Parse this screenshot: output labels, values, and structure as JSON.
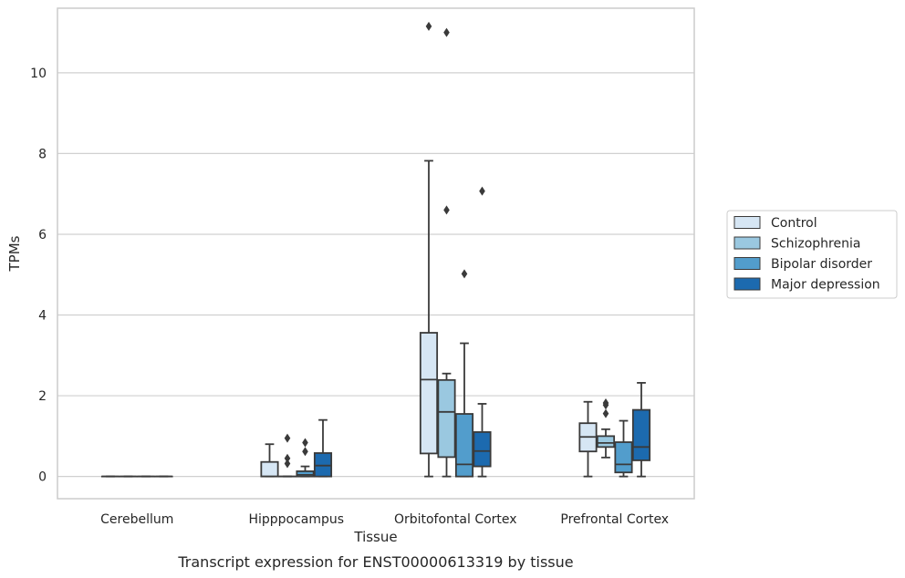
{
  "chart_data": {
    "type": "box",
    "caption": "Transcript expression for ENST00000613319 by tissue",
    "xlabel": "Tissue",
    "ylabel": "TPMs",
    "ylim": [
      -0.55,
      11.6
    ],
    "yticks": [
      0,
      2,
      4,
      6,
      8,
      10
    ],
    "grid": true,
    "legend_position": "right",
    "categories": [
      "Cerebellum",
      "Hipppocampus",
      "Orbitofontal Cortex",
      "Prefrontal Cortex"
    ],
    "series": [
      {
        "name": "Control",
        "color": "#d6e6f4",
        "boxes": [
          {
            "whisker_low": 0,
            "q1": 0,
            "median": 0,
            "q3": 0,
            "whisker_high": 0,
            "outliers": []
          },
          {
            "whisker_low": 0,
            "q1": 0,
            "median": 0,
            "q3": 0.36,
            "whisker_high": 0.8,
            "outliers": []
          },
          {
            "whisker_low": 0,
            "q1": 0.57,
            "median": 2.4,
            "q3": 3.56,
            "whisker_high": 7.82,
            "outliers": [
              11.15
            ]
          },
          {
            "whisker_low": 0,
            "q1": 0.62,
            "median": 0.98,
            "q3": 1.32,
            "whisker_high": 1.85,
            "outliers": []
          }
        ]
      },
      {
        "name": "Schizophrenia",
        "color": "#9ac8e0",
        "boxes": [
          {
            "whisker_low": 0,
            "q1": 0,
            "median": 0,
            "q3": 0,
            "whisker_high": 0,
            "outliers": []
          },
          {
            "whisker_low": 0,
            "q1": 0,
            "median": 0,
            "q3": 0,
            "whisker_high": 0,
            "outliers": [
              0.95,
              0.45,
              0.32
            ]
          },
          {
            "whisker_low": 0,
            "q1": 0.48,
            "median": 1.6,
            "q3": 2.39,
            "whisker_high": 2.55,
            "outliers": [
              11.0,
              6.6
            ]
          },
          {
            "whisker_low": 0.47,
            "q1": 0.73,
            "median": 0.83,
            "q3": 1.0,
            "whisker_high": 1.17,
            "outliers": [
              1.82,
              1.77,
              1.56
            ]
          }
        ]
      },
      {
        "name": "Bipolar disorder",
        "color": "#529dcc",
        "boxes": [
          {
            "whisker_low": 0,
            "q1": 0,
            "median": 0,
            "q3": 0,
            "whisker_high": 0,
            "outliers": []
          },
          {
            "whisker_low": 0,
            "q1": 0,
            "median": 0.04,
            "q3": 0.13,
            "whisker_high": 0.25,
            "outliers": [
              0.84,
              0.62
            ]
          },
          {
            "whisker_low": 0,
            "q1": 0,
            "median": 0.3,
            "q3": 1.55,
            "whisker_high": 3.3,
            "outliers": [
              5.02
            ]
          },
          {
            "whisker_low": 0,
            "q1": 0.1,
            "median": 0.3,
            "q3": 0.85,
            "whisker_high": 1.38,
            "outliers": []
          }
        ]
      },
      {
        "name": "Major depression",
        "color": "#1c6aaf",
        "boxes": [
          {
            "whisker_low": 0,
            "q1": 0,
            "median": 0,
            "q3": 0,
            "whisker_high": 0,
            "outliers": []
          },
          {
            "whisker_low": 0,
            "q1": 0,
            "median": 0.27,
            "q3": 0.58,
            "whisker_high": 1.4,
            "outliers": []
          },
          {
            "whisker_low": 0,
            "q1": 0.25,
            "median": 0.63,
            "q3": 1.1,
            "whisker_high": 1.8,
            "outliers": [
              7.07
            ]
          },
          {
            "whisker_low": 0,
            "q1": 0.4,
            "median": 0.73,
            "q3": 1.65,
            "whisker_high": 2.32,
            "outliers": []
          }
        ]
      }
    ]
  }
}
